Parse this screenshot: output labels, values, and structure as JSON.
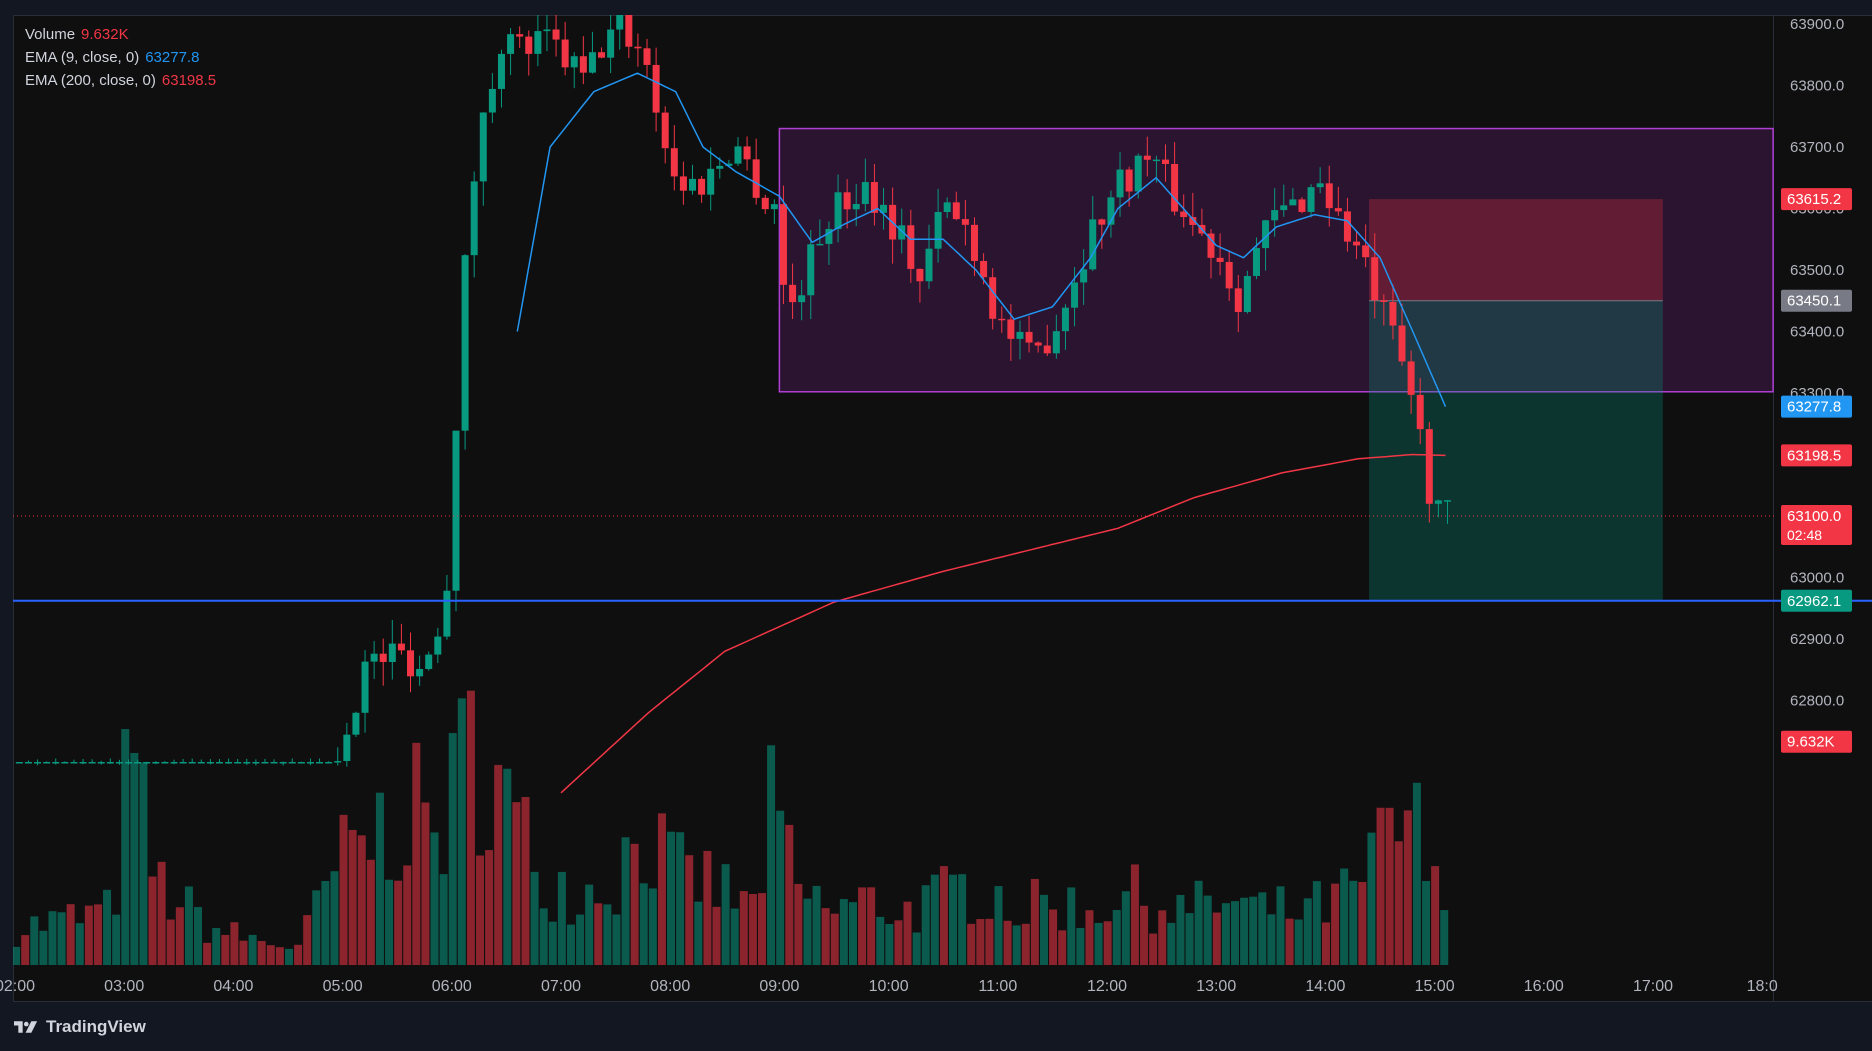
{
  "legend": {
    "volume_label": "Volume",
    "volume_value": "9.632K",
    "ema9_label": "EMA (9, close, 0)",
    "ema9_value": "63277.8",
    "ema200_label": "EMA (200, close, 0)",
    "ema200_value": "63198.5"
  },
  "brand": {
    "name": "TradingView"
  },
  "colors": {
    "up": "#089981",
    "down": "#f23645",
    "ema9": "#2196f3",
    "ema200": "#f23645",
    "support_line": "#2962ff",
    "range_box": "#9c27b0"
  },
  "chart_data": {
    "type": "candlestick",
    "x_axis": {
      "ticks": [
        "02:00",
        "03:00",
        "04:00",
        "05:00",
        "06:00",
        "07:00",
        "08:00",
        "09:00",
        "10:00",
        "11:00",
        "12:00",
        "13:00",
        "14:00",
        "15:00",
        "16:00",
        "17:00",
        "18:0"
      ],
      "range_hours": [
        2.0,
        18.2
      ]
    },
    "y_axis": {
      "ticks": [
        "62800.0",
        "62900.0",
        "63000.0",
        "63100.0",
        "63200.0",
        "63300.0",
        "63400.0",
        "63500.0",
        "63600.0",
        "63700.0",
        "63800.0",
        "63900.0"
      ],
      "range": [
        62640,
        63920
      ]
    },
    "price_labels": [
      {
        "text": "63615.2",
        "kind": "stop",
        "price": 63615.2
      },
      {
        "text": "63450.1",
        "kind": "entry",
        "price": 63450.1
      },
      {
        "text": "63277.8",
        "kind": "ema9",
        "price": 63277.8
      },
      {
        "text": "63198.5",
        "kind": "ema200",
        "price": 63198.5
      },
      {
        "text": "63100.0",
        "kind": "last",
        "price": 63100.0,
        "countdown": "02:48"
      },
      {
        "text": "62962.1",
        "kind": "target",
        "price": 62962.1
      },
      {
        "text": "9.632K",
        "kind": "volume",
        "price": 62733
      }
    ],
    "support_level": 62962.1,
    "range_box": {
      "t_start": 9.0,
      "t_end": 18.1,
      "high": 63730,
      "low": 63302
    },
    "position": {
      "t_start": 14.4,
      "t_end": 17.09,
      "entry": 63450.1,
      "stop": 63615.2,
      "target": 62962.1
    },
    "last_price": 63100.0,
    "candle_anchors": [
      [
        4.95,
        62700
      ],
      [
        5.2,
        62855
      ],
      [
        5.5,
        62880
      ],
      [
        5.75,
        62850
      ],
      [
        5.95,
        62980
      ],
      [
        6.08,
        63400
      ],
      [
        6.17,
        63620
      ],
      [
        6.3,
        63750
      ],
      [
        6.45,
        63880
      ],
      [
        6.6,
        63860
      ],
      [
        6.9,
        63870
      ],
      [
        7.2,
        63810
      ],
      [
        7.5,
        63900
      ],
      [
        7.75,
        63860
      ],
      [
        7.9,
        63750
      ],
      [
        8.05,
        63640
      ],
      [
        8.3,
        63640
      ],
      [
        8.6,
        63710
      ],
      [
        8.9,
        63600
      ],
      [
        9.0,
        63620
      ],
      [
        9.05,
        63420
      ],
      [
        9.2,
        63480
      ],
      [
        9.45,
        63590
      ],
      [
        9.8,
        63640
      ],
      [
        10.1,
        63560
      ],
      [
        10.3,
        63480
      ],
      [
        10.5,
        63610
      ],
      [
        10.75,
        63560
      ],
      [
        11.0,
        63420
      ],
      [
        11.3,
        63350
      ],
      [
        11.55,
        63420
      ],
      [
        11.85,
        63560
      ],
      [
        12.1,
        63640
      ],
      [
        12.4,
        63690
      ],
      [
        12.6,
        63620
      ],
      [
        12.85,
        63560
      ],
      [
        13.05,
        63520
      ],
      [
        13.2,
        63460
      ],
      [
        13.5,
        63580
      ],
      [
        13.75,
        63610
      ],
      [
        13.95,
        63650
      ],
      [
        14.1,
        63590
      ],
      [
        14.3,
        63530
      ],
      [
        14.45,
        63460
      ],
      [
        14.65,
        63370
      ],
      [
        14.8,
        63290
      ],
      [
        14.95,
        63150
      ],
      [
        15.1,
        63100
      ]
    ],
    "ema9_anchors": [
      [
        6.6,
        63400
      ],
      [
        6.9,
        63700
      ],
      [
        7.3,
        63790
      ],
      [
        7.7,
        63820
      ],
      [
        8.05,
        63790
      ],
      [
        8.3,
        63700
      ],
      [
        8.6,
        63660
      ],
      [
        9.0,
        63620
      ],
      [
        9.3,
        63545
      ],
      [
        9.6,
        63575
      ],
      [
        9.9,
        63600
      ],
      [
        10.2,
        63550
      ],
      [
        10.5,
        63550
      ],
      [
        10.8,
        63500
      ],
      [
        11.15,
        63420
      ],
      [
        11.5,
        63440
      ],
      [
        11.85,
        63520
      ],
      [
        12.1,
        63600
      ],
      [
        12.45,
        63650
      ],
      [
        12.7,
        63600
      ],
      [
        13.0,
        63540
      ],
      [
        13.25,
        63520
      ],
      [
        13.55,
        63570
      ],
      [
        13.9,
        63590
      ],
      [
        14.2,
        63580
      ],
      [
        14.5,
        63520
      ],
      [
        14.8,
        63400
      ],
      [
        15.1,
        63277.8
      ]
    ],
    "ema200_anchors": [
      [
        7.0,
        62650
      ],
      [
        7.8,
        62780
      ],
      [
        8.5,
        62880
      ],
      [
        9.5,
        62960
      ],
      [
        10.5,
        63010
      ],
      [
        11.3,
        63045
      ],
      [
        12.1,
        63080
      ],
      [
        12.8,
        63130
      ],
      [
        13.6,
        63170
      ],
      [
        14.3,
        63193
      ],
      [
        14.8,
        63200
      ],
      [
        15.1,
        63198.5
      ]
    ],
    "volume_anchors": [
      [
        2.0,
        40
      ],
      [
        2.9,
        60
      ],
      [
        3.05,
        230
      ],
      [
        3.3,
        90
      ],
      [
        3.8,
        40
      ],
      [
        4.3,
        25
      ],
      [
        4.6,
        20
      ],
      [
        4.95,
        110
      ],
      [
        5.25,
        140
      ],
      [
        5.6,
        170
      ],
      [
        5.9,
        150
      ],
      [
        6.05,
        200
      ],
      [
        6.2,
        250
      ],
      [
        6.35,
        220
      ],
      [
        6.6,
        150
      ],
      [
        6.85,
        100
      ],
      [
        7.2,
        80
      ],
      [
        7.5,
        100
      ],
      [
        7.75,
        150
      ],
      [
        8.05,
        100
      ],
      [
        8.4,
        90
      ],
      [
        8.75,
        60
      ],
      [
        8.95,
        180
      ],
      [
        9.15,
        80
      ],
      [
        9.5,
        60
      ],
      [
        9.8,
        70
      ],
      [
        10.2,
        60
      ],
      [
        10.6,
        80
      ],
      [
        10.9,
        90
      ],
      [
        11.2,
        60
      ],
      [
        11.55,
        70
      ],
      [
        11.85,
        60
      ],
      [
        12.1,
        80
      ],
      [
        12.4,
        70
      ],
      [
        12.7,
        60
      ],
      [
        13.05,
        70
      ],
      [
        13.4,
        60
      ],
      [
        13.8,
        60
      ],
      [
        14.1,
        70
      ],
      [
        14.35,
        90
      ],
      [
        14.6,
        150
      ],
      [
        14.8,
        160
      ],
      [
        15.0,
        80
      ],
      [
        15.1,
        75
      ]
    ]
  }
}
